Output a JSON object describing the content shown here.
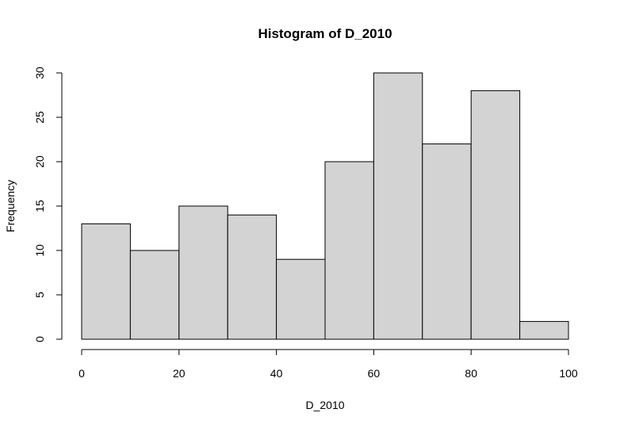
{
  "chart_data": {
    "type": "bar",
    "title": "Histogram of D_2010",
    "xlabel": "D_2010",
    "ylabel": "Frequency",
    "bin_edges": [
      0,
      10,
      20,
      30,
      40,
      50,
      60,
      70,
      80,
      90,
      100
    ],
    "values": [
      13,
      10,
      15,
      14,
      9,
      20,
      30,
      22,
      28,
      2
    ],
    "xlim": [
      0,
      100
    ],
    "ylim": [
      0,
      30
    ],
    "xticks": [
      0,
      20,
      40,
      60,
      80,
      100
    ],
    "yticks": [
      0,
      5,
      10,
      15,
      20,
      25,
      30
    ],
    "bar_color": "#d3d3d3",
    "edge_color": "#000000",
    "grid": false
  }
}
